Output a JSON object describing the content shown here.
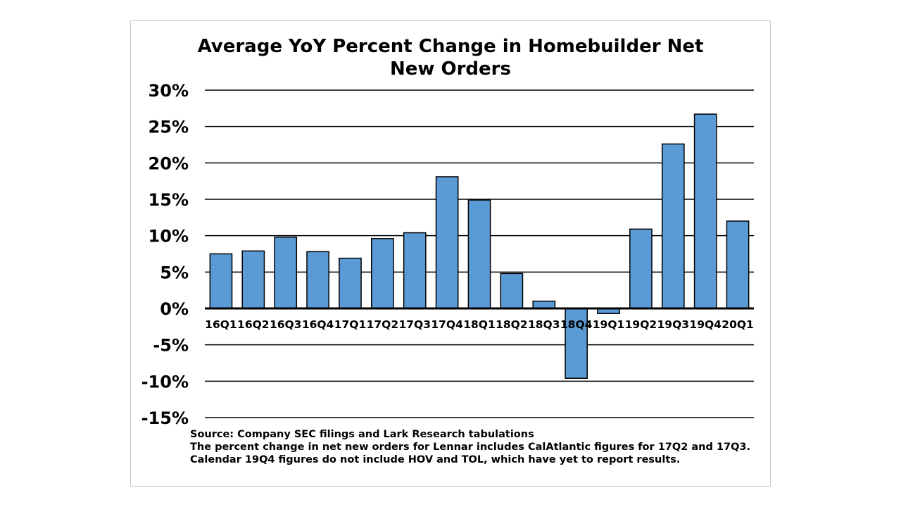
{
  "chart_data": {
    "type": "bar",
    "title_lines": [
      "Average YoY Percent Change in Homebuilder Net",
      "New Orders"
    ],
    "categories": [
      "16Q1",
      "16Q2",
      "16Q3",
      "16Q4",
      "17Q1",
      "17Q2",
      "17Q3",
      "17Q4",
      "18Q1",
      "18Q2",
      "18Q3",
      "18Q4",
      "19Q1",
      "19Q2",
      "19Q3",
      "19Q4",
      "20Q1"
    ],
    "series": [
      {
        "name": "Average YoY % change in net new orders",
        "values": [
          7.5,
          7.9,
          9.8,
          7.8,
          6.9,
          9.6,
          10.4,
          18.1,
          14.9,
          4.8,
          1.0,
          -9.6,
          -0.7,
          10.9,
          22.6,
          26.7,
          12.0
        ]
      }
    ],
    "ylim": [
      -15,
      30
    ],
    "yticks": [
      30,
      25,
      20,
      15,
      10,
      5,
      0,
      -5,
      -10,
      -15
    ],
    "ytick_labels": [
      "30%",
      "25%",
      "20%",
      "15%",
      "10%",
      "5%",
      "0%",
      "-5%",
      "-10%",
      "-15%"
    ],
    "xlabel": "",
    "ylabel": "",
    "grid": true,
    "bar_color": "#5b9bd5",
    "bar_edge_color": "#000000"
  },
  "footnotes": [
    "Source:  Company SEC filings and Lark Research tabulations",
    "The percent change in net new orders for Lennar includes CalAtlantic figures for 17Q2 and 17Q3.",
    "Calendar 19Q4 figures do not include HOV and TOL, which have yet to report results."
  ]
}
